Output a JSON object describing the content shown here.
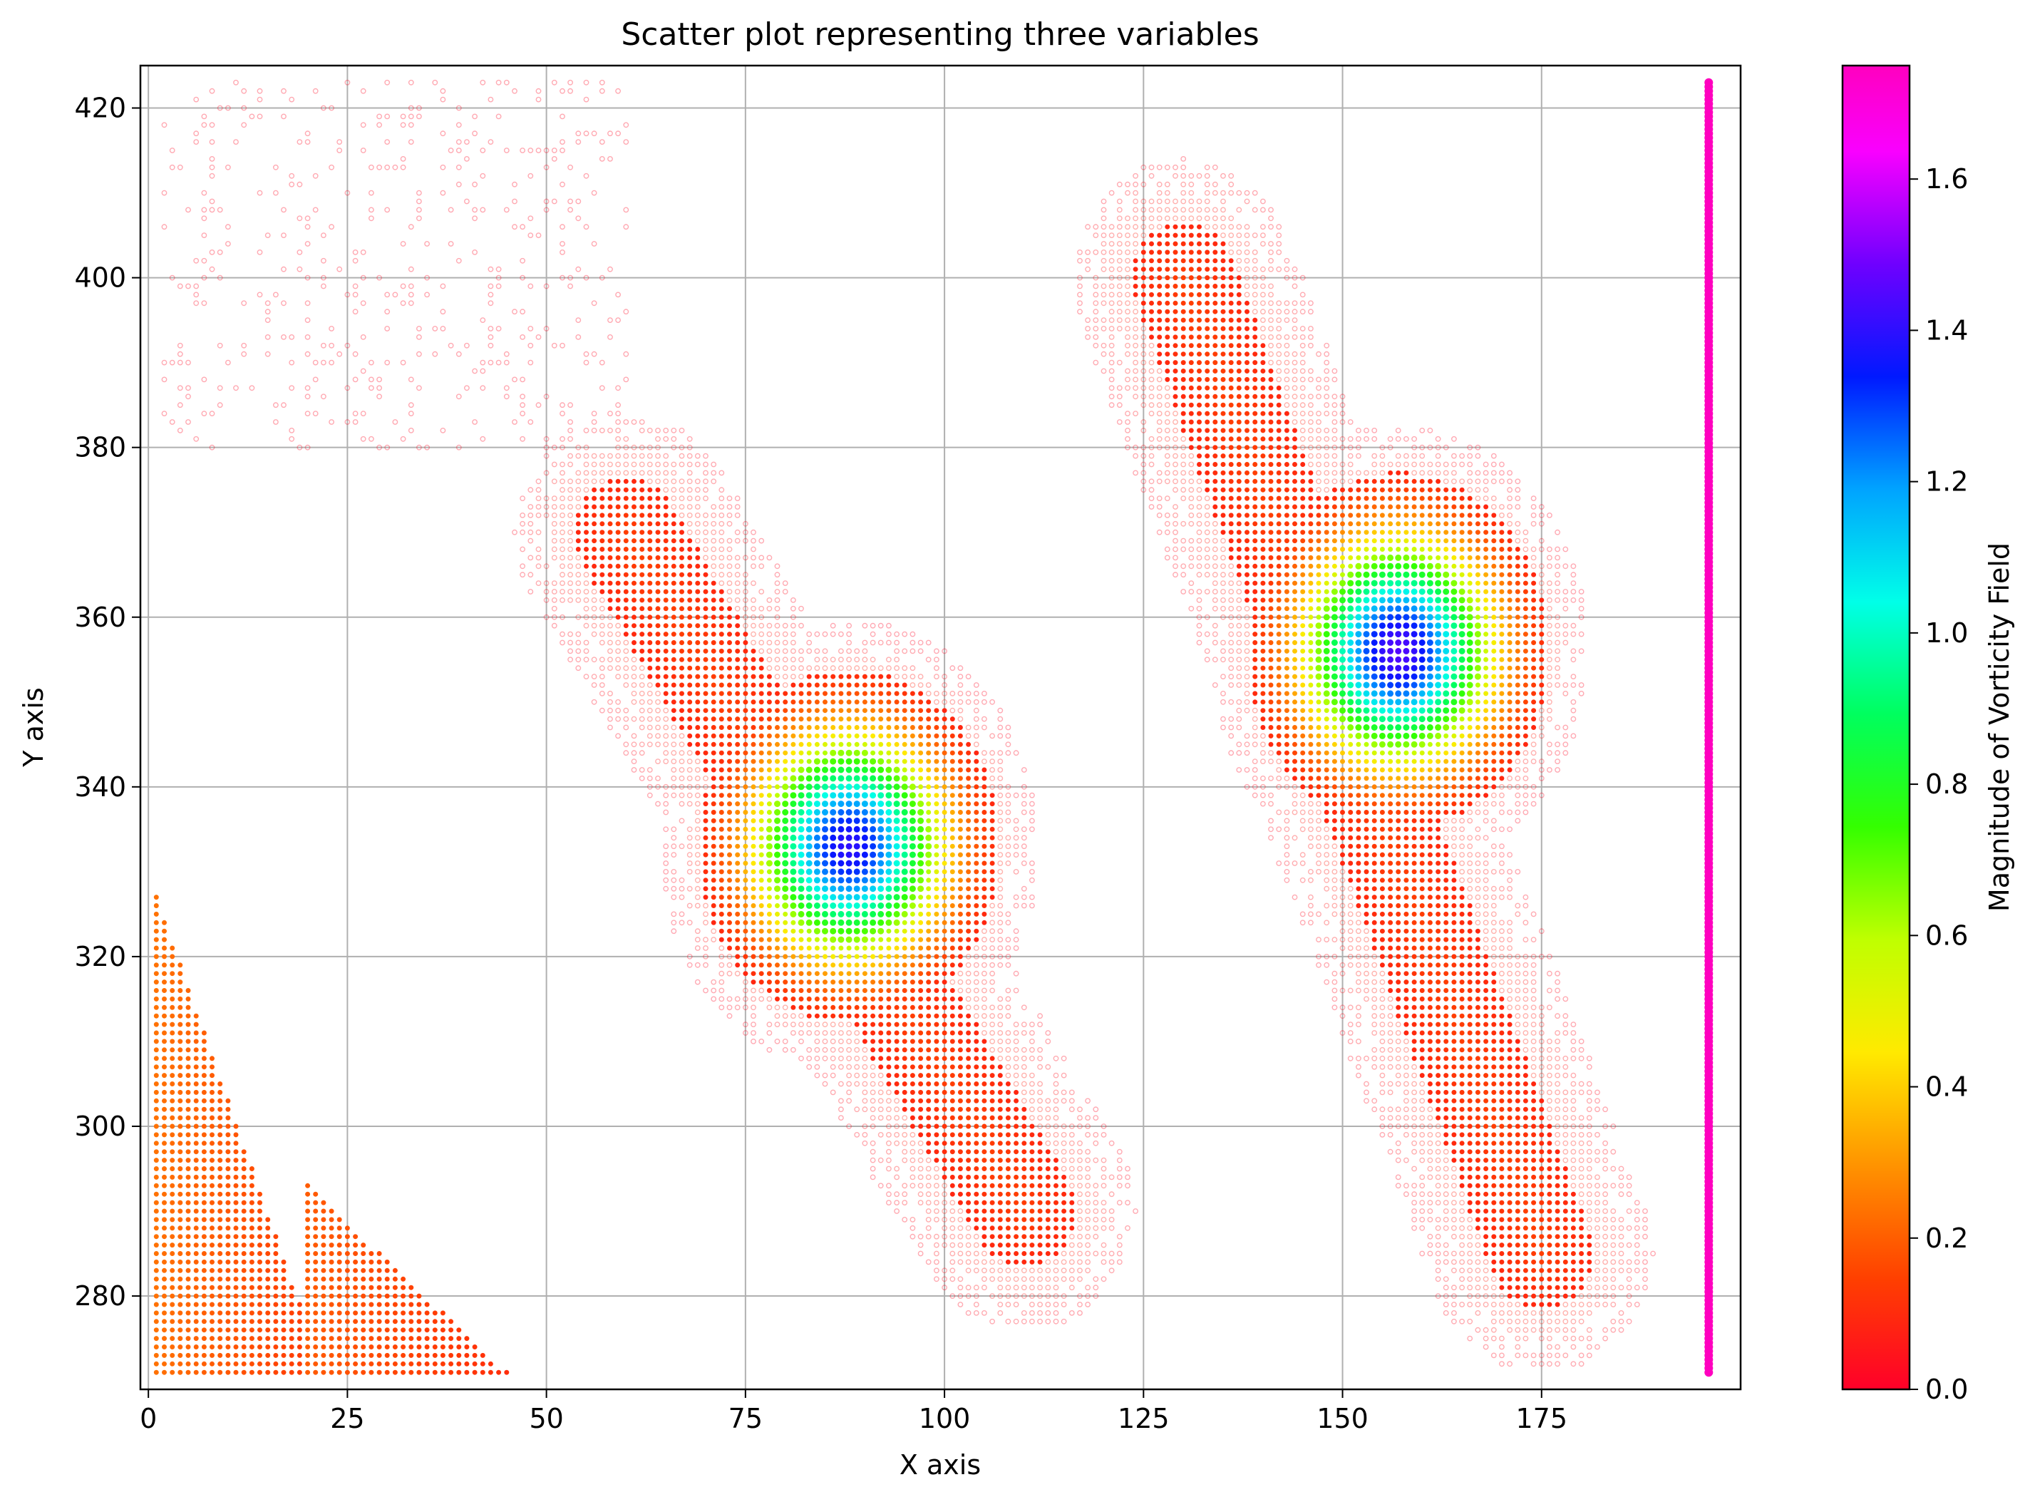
{
  "chart_data": {
    "type": "scatter",
    "title": "Scatter plot representing three variables",
    "xlabel": "X axis",
    "ylabel": "Y axis",
    "xlim": [
      -1,
      200
    ],
    "ylim": [
      269,
      425
    ],
    "xticks": [
      0,
      25,
      50,
      75,
      100,
      125,
      150,
      175
    ],
    "yticks": [
      280,
      300,
      320,
      340,
      360,
      380,
      400,
      420
    ],
    "grid": true,
    "colormap": "gist_rainbow",
    "colorbar": {
      "label": "Magnitude of Vorticity Field",
      "range": [
        0.0,
        1.75
      ],
      "ticks": [
        0.0,
        0.2,
        0.4,
        0.6,
        0.8,
        1.0,
        1.2,
        1.4,
        1.6
      ]
    },
    "point_grid_spacing": 1,
    "regions": [
      {
        "name": "left lower-left triangle",
        "x_range": [
          1,
          22
        ],
        "y_top_at_x_start": 327,
        "y_bottom": 271,
        "magnitude": 0.18
      },
      {
        "name": "small bottom triangle",
        "x_range": [
          20,
          45
        ],
        "y_top_at_x_start": 293,
        "y_bottom": 271,
        "magnitude": 0.15
      },
      {
        "name": "central diagonal band",
        "from": [
          60,
          370
        ],
        "to": [
          110,
          290
        ],
        "width": 14,
        "magnitude": 0.12
      },
      {
        "name": "right diagonal band",
        "from": [
          130,
          400
        ],
        "to": [
          175,
          285
        ],
        "width": 14,
        "magnitude": 0.12
      },
      {
        "name": "sparse upper-left field",
        "x_range": [
          2,
          60
        ],
        "y_range": [
          380,
          423
        ],
        "magnitude": 0.02
      }
    ],
    "vortices": [
      {
        "center": [
          88,
          333
        ],
        "peak_magnitude": 1.4,
        "core_radius": 8
      },
      {
        "center": [
          157,
          356
        ],
        "peak_magnitude": 1.45,
        "core_radius": 8
      }
    ],
    "edge_column": {
      "x": 196,
      "y_range": [
        271,
        423
      ],
      "magnitude": 1.75
    }
  }
}
